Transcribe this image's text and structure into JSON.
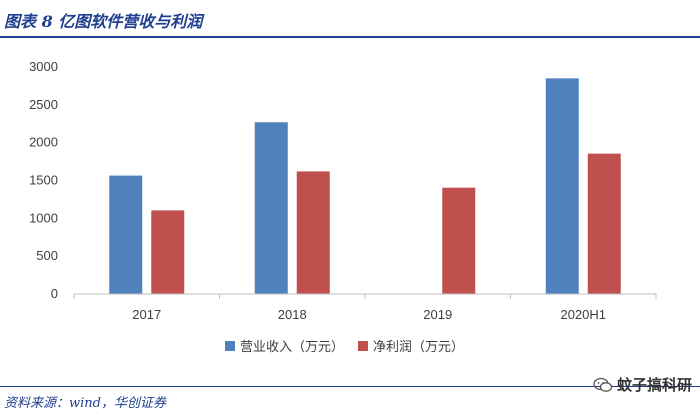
{
  "header": {
    "title": "图表 8 亿图软件营收与利润"
  },
  "footer": {
    "source": "资料来源：wind，华创证券",
    "watermark": "蚊子搞科研"
  },
  "colors": {
    "revenue": "#4f81bd",
    "profit": "#c0504d",
    "brand": "#1f3f8f"
  },
  "chart_data": {
    "type": "bar",
    "categories": [
      "2017",
      "2018",
      "2019",
      "2020H1"
    ],
    "series": [
      {
        "name": "营业收入（万元）",
        "values": [
          1565,
          2270,
          null,
          2850
        ]
      },
      {
        "name": "净利润（万元）",
        "values": [
          1105,
          1620,
          1405,
          1855
        ]
      }
    ],
    "ylim": [
      0,
      3000
    ],
    "yticks": [
      0,
      500,
      1000,
      1500,
      2000,
      2500,
      3000
    ],
    "grid": false,
    "legend": "bottom"
  }
}
